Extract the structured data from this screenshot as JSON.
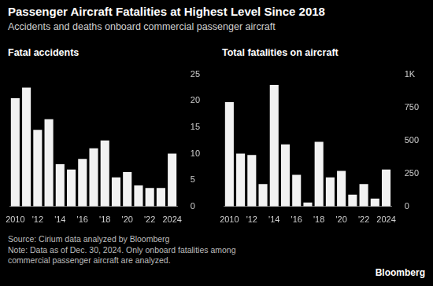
{
  "title": "Passenger Aircraft Fatalities at Highest Level Since 2018",
  "subtitle": "Accidents and deaths onboard commercial passenger aircraft",
  "source": "Source: Cirium data analyzed by Bloomberg",
  "note": "Note: Data as of Dec. 30, 2024. Only onboard fatalities among commercial passenger aircraft are analyzed.",
  "brand": "Bloomberg",
  "chart_data": [
    {
      "type": "bar",
      "title": "Fatal accidents",
      "categories": [
        "2010",
        null,
        "'12",
        null,
        "'14",
        null,
        "'16",
        null,
        "'18",
        null,
        "'20",
        null,
        "'22",
        null,
        "2024"
      ],
      "values": [
        20.5,
        22.5,
        14.5,
        16.5,
        8,
        7,
        9,
        11,
        12.5,
        5.5,
        6.5,
        4,
        3.5,
        3.5,
        10
      ],
      "color": "#f2f2f2",
      "ylim": [
        0,
        25
      ],
      "yticks": [
        0,
        5,
        10,
        15,
        20,
        25
      ],
      "grid": false
    },
    {
      "type": "bar",
      "title": "Total fatalities on aircraft",
      "categories": [
        "2010",
        null,
        "'12",
        null,
        "'14",
        null,
        "'16",
        null,
        "'18",
        null,
        "'20",
        null,
        "'22",
        null,
        "2024"
      ],
      "values": [
        790,
        400,
        390,
        170,
        920,
        470,
        240,
        30,
        490,
        220,
        270,
        90,
        170,
        60,
        280
      ],
      "color": "#f2f2f2",
      "ylim": [
        0,
        1000
      ],
      "yticks": [
        0,
        250,
        500,
        750,
        {
          "value": 1000,
          "label": "1K"
        }
      ],
      "grid": false
    }
  ]
}
